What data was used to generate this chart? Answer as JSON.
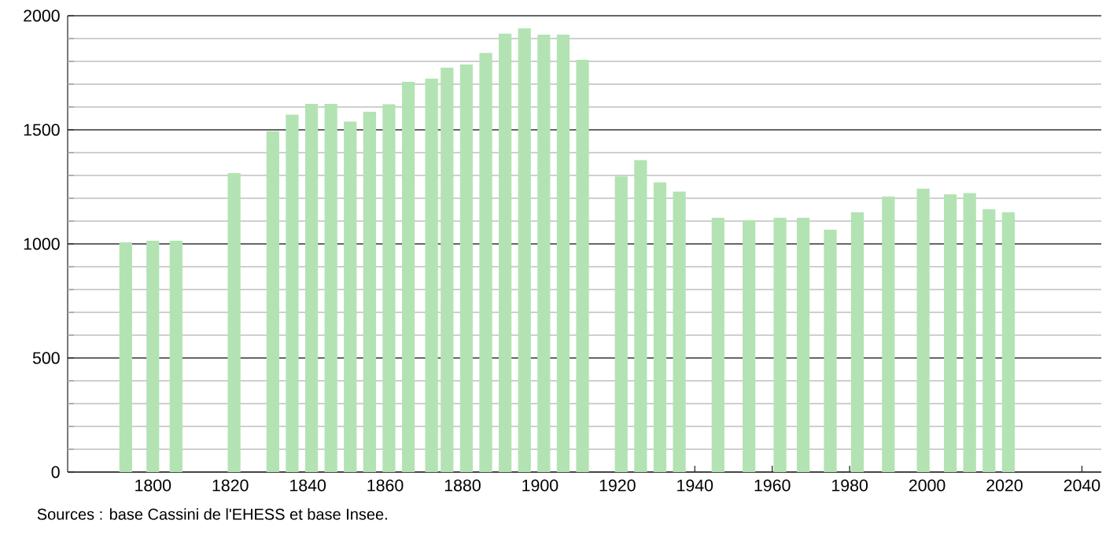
{
  "chart_data": {
    "type": "bar",
    "color": "#b3e3b3",
    "x": [
      1793,
      1800,
      1806,
      1821,
      1831,
      1836,
      1841,
      1846,
      1851,
      1856,
      1861,
      1866,
      1872,
      1876,
      1881,
      1886,
      1891,
      1896,
      1901,
      1906,
      1911,
      1921,
      1926,
      1931,
      1936,
      1946,
      1954,
      1962,
      1968,
      1975,
      1982,
      1990,
      1999,
      2006,
      2011,
      2016,
      2021
    ],
    "values": [
      1007,
      1014,
      1014,
      1310,
      1494,
      1566,
      1614,
      1614,
      1536,
      1579,
      1612,
      1710,
      1724,
      1772,
      1786,
      1837,
      1922,
      1945,
      1917,
      1917,
      1807,
      1296,
      1367,
      1270,
      1229,
      1115,
      1104,
      1115,
      1115,
      1062,
      1139,
      1208,
      1242,
      1217,
      1222,
      1152,
      1139
    ],
    "xlim": [
      1778,
      2045
    ],
    "xticks": [
      1800,
      1820,
      1840,
      1860,
      1880,
      1900,
      1920,
      1940,
      1960,
      1980,
      2000,
      2020,
      2040
    ],
    "ylim": [
      0,
      2000
    ],
    "yticks": [
      0,
      {
        "value": 100,
        "label": null
      },
      {
        "value": 200,
        "label": null
      },
      {
        "value": 300,
        "label": null
      },
      {
        "value": 400,
        "label": null
      },
      500,
      {
        "value": 600,
        "label": null
      },
      {
        "value": 700,
        "label": null
      },
      {
        "value": 800,
        "label": null
      },
      {
        "value": 900,
        "label": null
      },
      1000,
      {
        "value": 1100,
        "label": null
      },
      {
        "value": 1200,
        "label": null
      },
      {
        "value": 1300,
        "label": null
      },
      {
        "value": 1400,
        "label": null
      },
      1500,
      {
        "value": 1600,
        "label": null
      },
      {
        "value": 1700,
        "label": null
      },
      {
        "value": 1800,
        "label": null
      },
      {
        "value": 1900,
        "label": null
      },
      2000
    ],
    "grid": "y",
    "annotations": [
      "Sources : base Cassini de l'EHESS et base Insee."
    ]
  }
}
